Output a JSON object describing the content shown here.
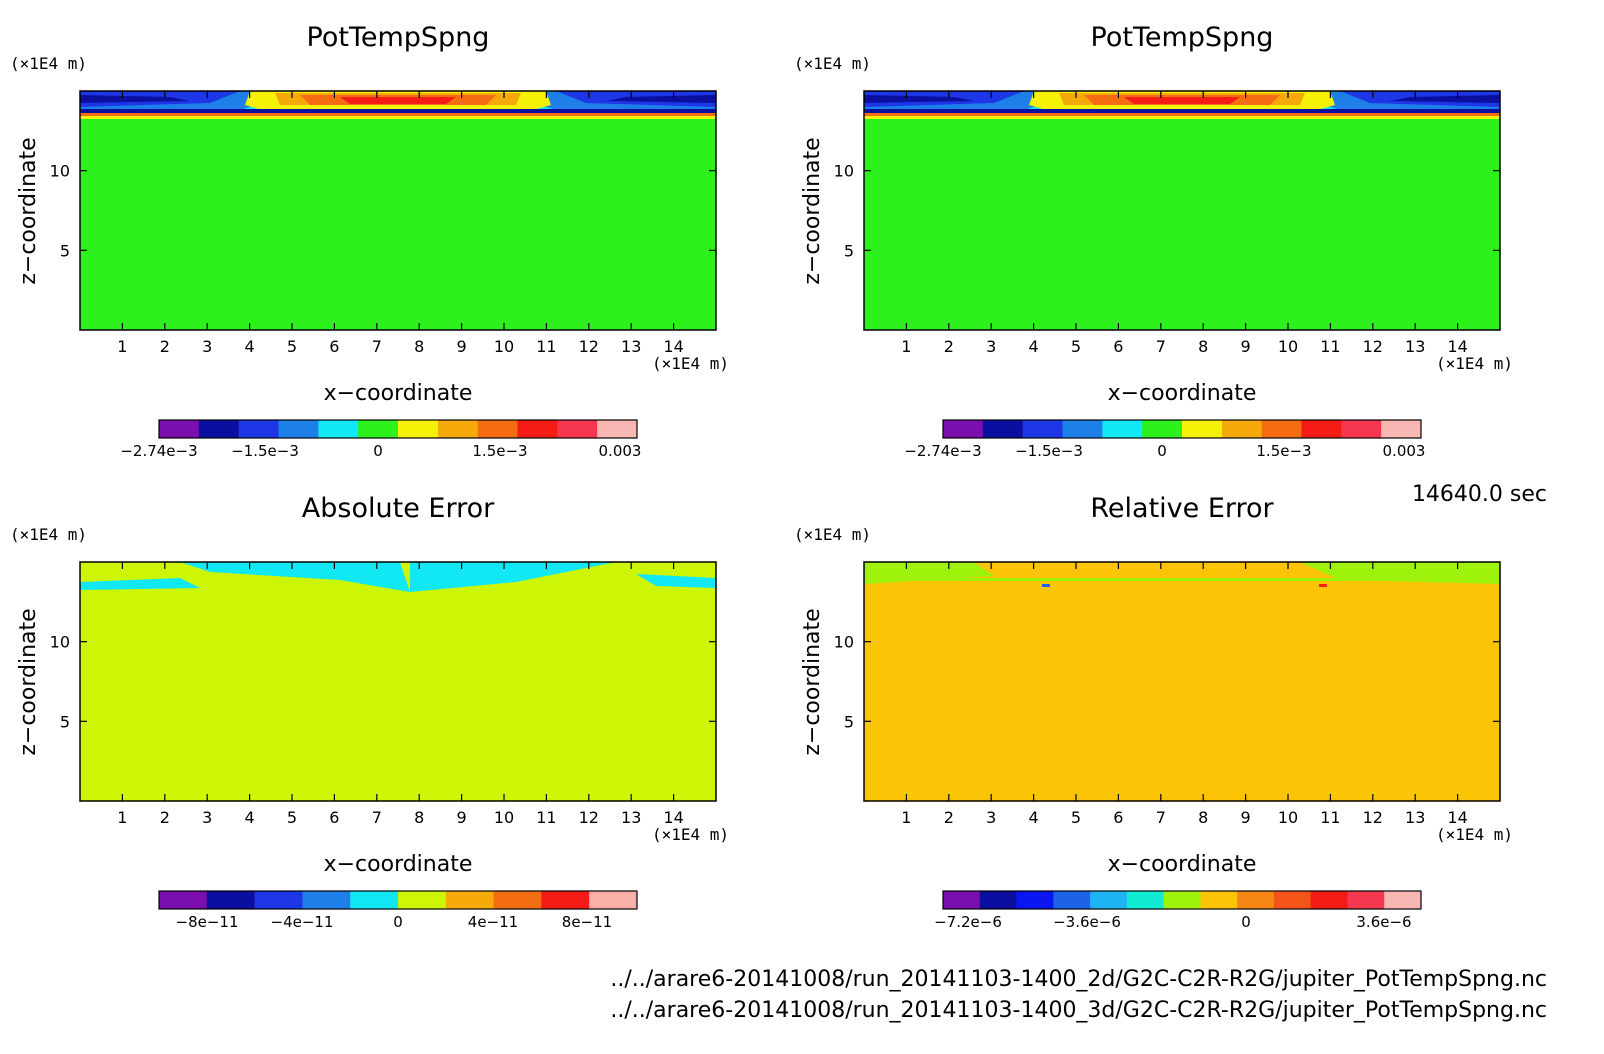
{
  "time_label": "14640.0 sec",
  "footer": {
    "file1": "../../arare6-20141008/run_20141103-1400_2d/G2C-C2R-R2G/jupiter_PotTempSpng.nc",
    "file2": "../../arare6-20141008/run_20141103-1400_3d/G2C-C2R-R2G/jupiter_PotTempSpng.nc"
  },
  "chart_data": [
    {
      "type": "heatmap",
      "title": "PotTempSpng",
      "xlabel": "x−coordinate",
      "ylabel": "z−coordinate",
      "x_unit": "(×1E4 m)",
      "y_unit": "(×1E4 m)",
      "xlim": [
        0,
        15
      ],
      "ylim": [
        0,
        15
      ],
      "x_ticks": [
        1,
        2,
        3,
        4,
        5,
        6,
        7,
        8,
        9,
        10,
        11,
        12,
        13,
        14
      ],
      "y_ticks": [
        5,
        10
      ],
      "colorbar": {
        "colors": [
          "#7a0fae",
          "#0b0fa0",
          "#1d36e6",
          "#1d7fe8",
          "#11e8f3",
          "#2ef01c",
          "#f5f208",
          "#f5a90b",
          "#f56d13",
          "#f51c16",
          "#f5384f",
          "#f8b7b2"
        ],
        "labels": [
          "-2.74e-3",
          "-1.5e-3",
          "0",
          "1.5e-3",
          "0.003"
        ]
      },
      "background_color": "#2ef01c"
    },
    {
      "type": "heatmap",
      "title": "PotTempSpng",
      "xlabel": "x−coordinate",
      "ylabel": "z−coordinate",
      "x_unit": "(×1E4 m)",
      "y_unit": "(×1E4 m)",
      "xlim": [
        0,
        15
      ],
      "ylim": [
        0,
        15
      ],
      "x_ticks": [
        1,
        2,
        3,
        4,
        5,
        6,
        7,
        8,
        9,
        10,
        11,
        12,
        13,
        14
      ],
      "y_ticks": [
        5,
        10
      ],
      "colorbar": {
        "colors": [
          "#7a0fae",
          "#0b0fa0",
          "#1d36e6",
          "#1d7fe8",
          "#11e8f3",
          "#2ef01c",
          "#f5f208",
          "#f5a90b",
          "#f56d13",
          "#f51c16",
          "#f5384f",
          "#f8b7b2"
        ],
        "labels": [
          "-2.74e-3",
          "-1.5e-3",
          "0",
          "1.5e-3",
          "0.003"
        ]
      },
      "background_color": "#2ef01c"
    },
    {
      "type": "heatmap",
      "title": "Absolute Error",
      "xlabel": "x−coordinate",
      "ylabel": "z−coordinate",
      "x_unit": "(×1E4 m)",
      "y_unit": "(×1E4 m)",
      "xlim": [
        0,
        15
      ],
      "ylim": [
        0,
        15
      ],
      "x_ticks": [
        1,
        2,
        3,
        4,
        5,
        6,
        7,
        8,
        9,
        10,
        11,
        12,
        13,
        14
      ],
      "y_ticks": [
        5,
        10
      ],
      "colorbar": {
        "colors": [
          "#7a0fae",
          "#0b0fa0",
          "#1d36e6",
          "#1d7fe8",
          "#11e8f3",
          "#cdf606",
          "#f5a90b",
          "#f56d13",
          "#f51c16",
          "#f8b0a8"
        ],
        "labels": [
          "-8e-11",
          "-4e-11",
          "0",
          "4e-11",
          "8e-11"
        ]
      },
      "background_color": "#cdf606"
    },
    {
      "type": "heatmap",
      "title": "Relative Error",
      "xlabel": "x−coordinate",
      "ylabel": "z−coordinate",
      "x_unit": "(×1E4 m)",
      "y_unit": "(×1E4 m)",
      "xlim": [
        0,
        15
      ],
      "ylim": [
        0,
        15
      ],
      "x_ticks": [
        1,
        2,
        3,
        4,
        5,
        6,
        7,
        8,
        9,
        10,
        11,
        12,
        13,
        14
      ],
      "y_ticks": [
        5,
        10
      ],
      "colorbar": {
        "colors": [
          "#7a0fae",
          "#0b0fa0",
          "#0a16f0",
          "#1d62e8",
          "#1eb3f2",
          "#12ebd2",
          "#9ef20b",
          "#fbc405",
          "#f58613",
          "#f55418",
          "#f51c16",
          "#f5384f",
          "#f8b7b2"
        ],
        "labels": [
          "-7.2e-6",
          "-3.6e-6",
          "0",
          "3.6e-6"
        ]
      },
      "background_color": "#fbc405"
    }
  ]
}
